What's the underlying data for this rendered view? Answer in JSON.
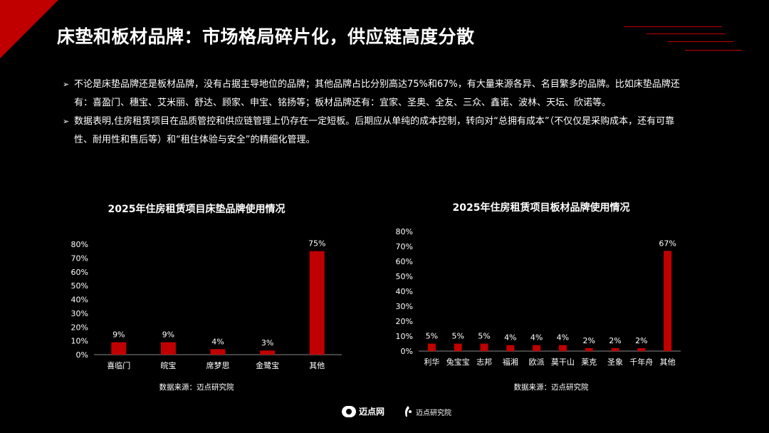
{
  "title": "床垫和板材品牌：市场格局碎片化，供应链高度分散",
  "theme": {
    "accent": "#c00000",
    "background": "#000000",
    "text": "#ffffff"
  },
  "bullets": [
    "不论是床垫品牌还是板材品牌，没有占据主导地位的品牌；其他品牌占比分别高达75%和67%，有大量来源各异、名目繁多的品牌。比如床垫品牌还有：喜盈门、穗宝、艾米丽、舒达、顾家、申宝、铭扬等；板材品牌还有：宜家、圣奥、全友、三众、鑫诺、波林、天坛、欣诺等。",
    "数据表明,住房租赁项目在品质管控和供应链管理上仍存在一定短板。后期应从单纯的成本控制，转向对“总拥有成本”（不仅仅是采购成本，还有可靠性、耐用性和售后等）和“租住体验与安全”的精细化管理。"
  ],
  "bullet_marker": "➢",
  "chart_data": [
    {
      "type": "bar",
      "title": "2025年住房租赁项目床垫品牌使用情况",
      "categories": [
        "喜临门",
        "皖宝",
        "席梦思",
        "金鹭宝",
        "其他"
      ],
      "values": [
        9,
        9,
        4,
        3,
        75
      ],
      "value_labels": [
        "9%",
        "9%",
        "4%",
        "3%",
        "75%"
      ],
      "ylim": [
        0,
        80
      ],
      "yticks": [
        "0%",
        "10%",
        "20%",
        "30%",
        "40%",
        "50%",
        "60%",
        "70%",
        "80%"
      ],
      "bar_color": "#c00000",
      "grid": false,
      "source": "数据来源：迈点研究院"
    },
    {
      "type": "bar",
      "title": "2025年住房租赁项目板材品牌使用情况",
      "categories": [
        "利华",
        "兔宝宝",
        "志邦",
        "福湘",
        "欧派",
        "莫干山",
        "莱克",
        "圣象",
        "千年舟",
        "其他"
      ],
      "values": [
        5,
        5,
        5,
        4,
        4,
        4,
        2,
        2,
        2,
        67
      ],
      "value_labels": [
        "5%",
        "5%",
        "5%",
        "4%",
        "4%",
        "4%",
        "2%",
        "2%",
        "2%",
        "67%"
      ],
      "ylim": [
        0,
        80
      ],
      "yticks": [
        "0%",
        "10%",
        "20%",
        "30%",
        "40%",
        "50%",
        "60%",
        "70%",
        "80%"
      ],
      "bar_color": "#c00000",
      "grid": false,
      "source": "数据来源：迈点研究院"
    }
  ],
  "footer": {
    "logo1_text": "迈点网",
    "logo2_text": "迈点研究院"
  }
}
